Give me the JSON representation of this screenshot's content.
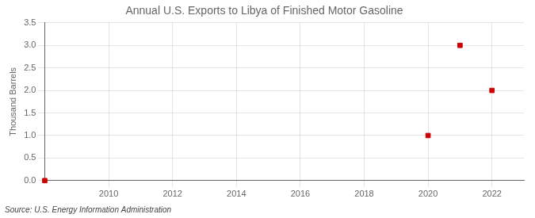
{
  "chart_data": {
    "type": "scatter",
    "title": "Annual U.S. Exports to Libya of Finished Motor Gasoline",
    "ylabel": "Thousand Barrels",
    "annotations": [
      "Source: U.S. Energy Information Administration"
    ],
    "x": [
      2008,
      2020,
      2021,
      2022
    ],
    "values": [
      0.0,
      1.0,
      3.0,
      2.0
    ],
    "color": "#cc0000",
    "marker": "square",
    "xlim": [
      2008,
      2023
    ],
    "xticks": [
      2010,
      2012,
      2014,
      2016,
      2018,
      2020,
      2022
    ],
    "ylim": [
      0.0,
      3.5
    ],
    "yticks": [
      {
        "value": 0.0,
        "label": "0.0"
      },
      {
        "value": 0.5,
        "label": "0.5"
      },
      {
        "value": 1.0,
        "label": "1.0"
      },
      {
        "value": 1.5,
        "label": "1.5"
      },
      {
        "value": 2.0,
        "label": "2.0"
      },
      {
        "value": 2.5,
        "label": "2.5"
      },
      {
        "value": 3.0,
        "label": "3.0"
      },
      {
        "value": 3.5,
        "label": "3.5"
      }
    ],
    "grid": true
  }
}
